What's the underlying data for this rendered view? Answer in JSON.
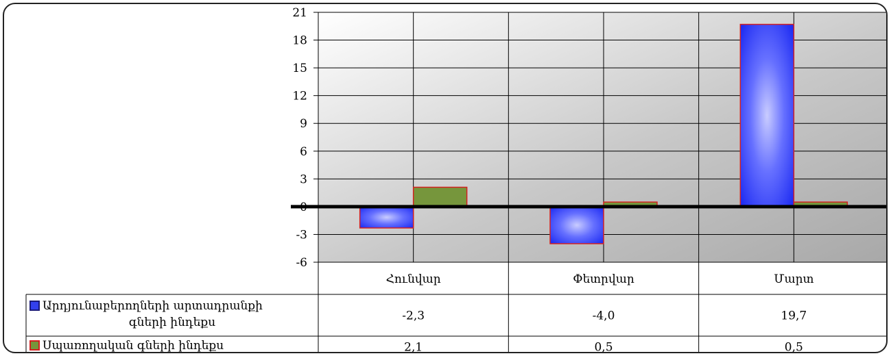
{
  "chart_data": {
    "type": "bar",
    "categories": [
      "Հունվար",
      "Փետրվար",
      "Մարտ"
    ],
    "series": [
      {
        "name": "Արդյունաբերողների արտադրանքի գների ինդեքս",
        "values": [
          -2.3,
          -4.0,
          19.7
        ],
        "labels": [
          "-2,3",
          "-4,0",
          "19,7"
        ],
        "color": "#2233ff"
      },
      {
        "name": "Սպառողական գների ինդեքս",
        "values": [
          2.1,
          0.5,
          0.5
        ],
        "labels": [
          "2,1",
          "0,5",
          "0,5"
        ],
        "color": "#76963c"
      }
    ],
    "ylim": [
      -6,
      21
    ],
    "yticks": [
      -6,
      -3,
      0,
      3,
      6,
      9,
      12,
      15,
      18,
      21
    ],
    "grid": true,
    "data_table": true,
    "legend_placement": "data-table",
    "bar_border_color": "#d42020"
  }
}
